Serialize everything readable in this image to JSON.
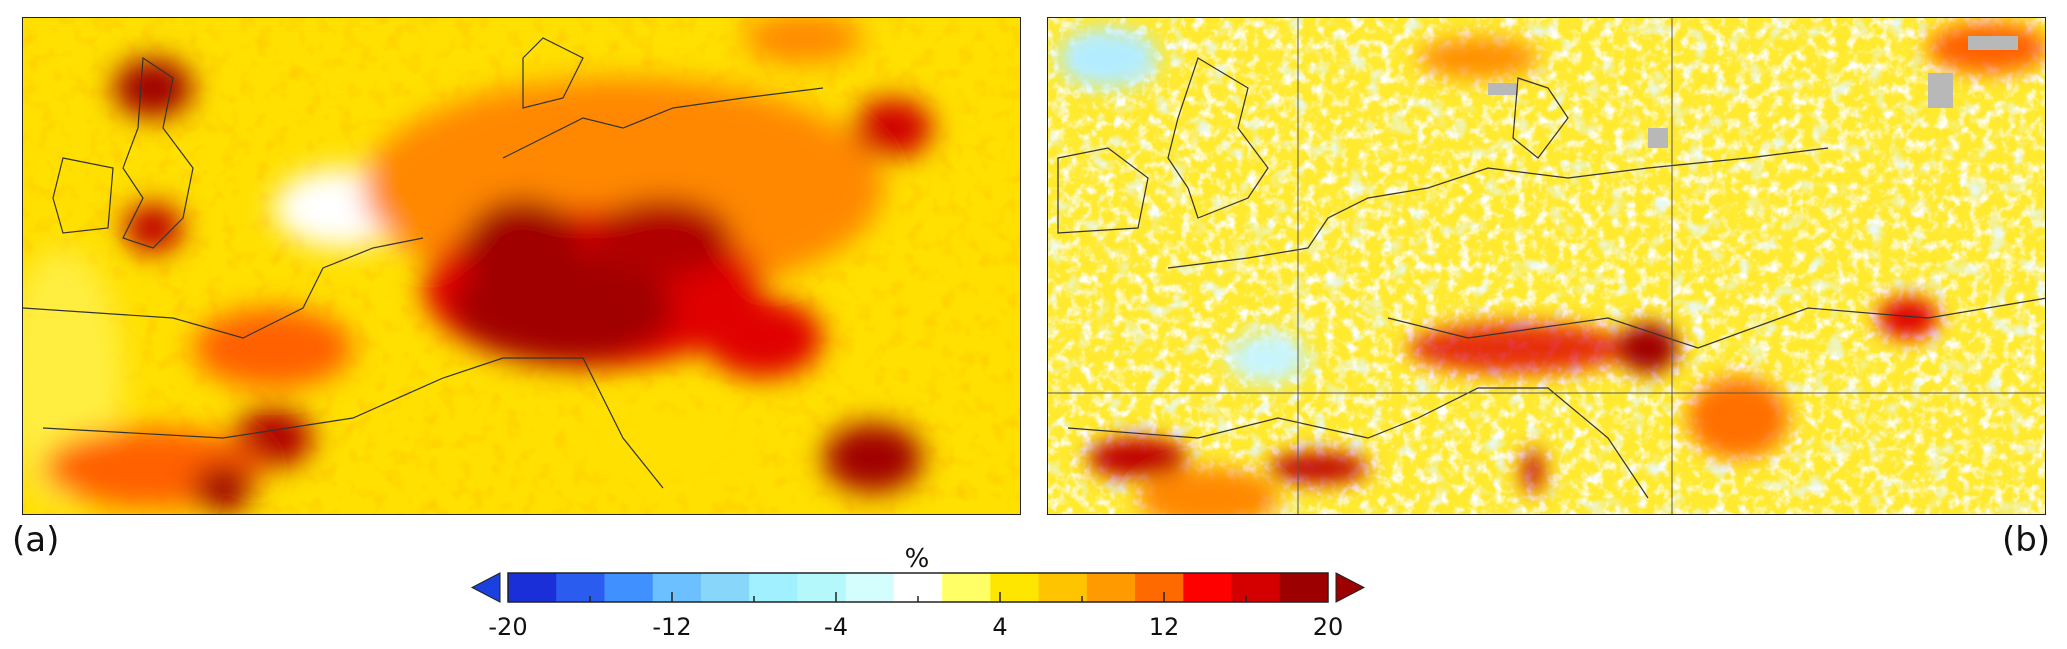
{
  "panels": [
    {
      "label": "(a)"
    },
    {
      "label": "(b)"
    }
  ],
  "colorbar": {
    "title": "%",
    "min": -20,
    "max": 20,
    "tick_labels": [
      "-20",
      "-12",
      "-4",
      "4",
      "12",
      "20"
    ],
    "tick_values": [
      -20,
      -12,
      -4,
      4,
      12,
      20
    ],
    "minor_ticks": [
      -16,
      -8,
      0,
      8,
      16
    ],
    "colors": [
      "#1a2fd8",
      "#2a5cf0",
      "#4190ff",
      "#6cc0ff",
      "#88d6fa",
      "#a0f0ff",
      "#b4f8fc",
      "#d4fefe",
      "#ffffff",
      "#ffff66",
      "#ffe600",
      "#ffc400",
      "#ff9a00",
      "#ff6a00",
      "#ff0000",
      "#d40000",
      "#9c0000"
    ],
    "under_color": "#1a40e0",
    "over_color": "#9c0000"
  },
  "palette": {
    "yellow": "#ffe600",
    "light_yellow": "#ffff66",
    "orange": "#ffa000",
    "red": "#e00000",
    "dark_red": "#a00000",
    "light_blue": "#c8f4ff",
    "missing": "#b8b8b8",
    "coast": "#333333"
  }
}
